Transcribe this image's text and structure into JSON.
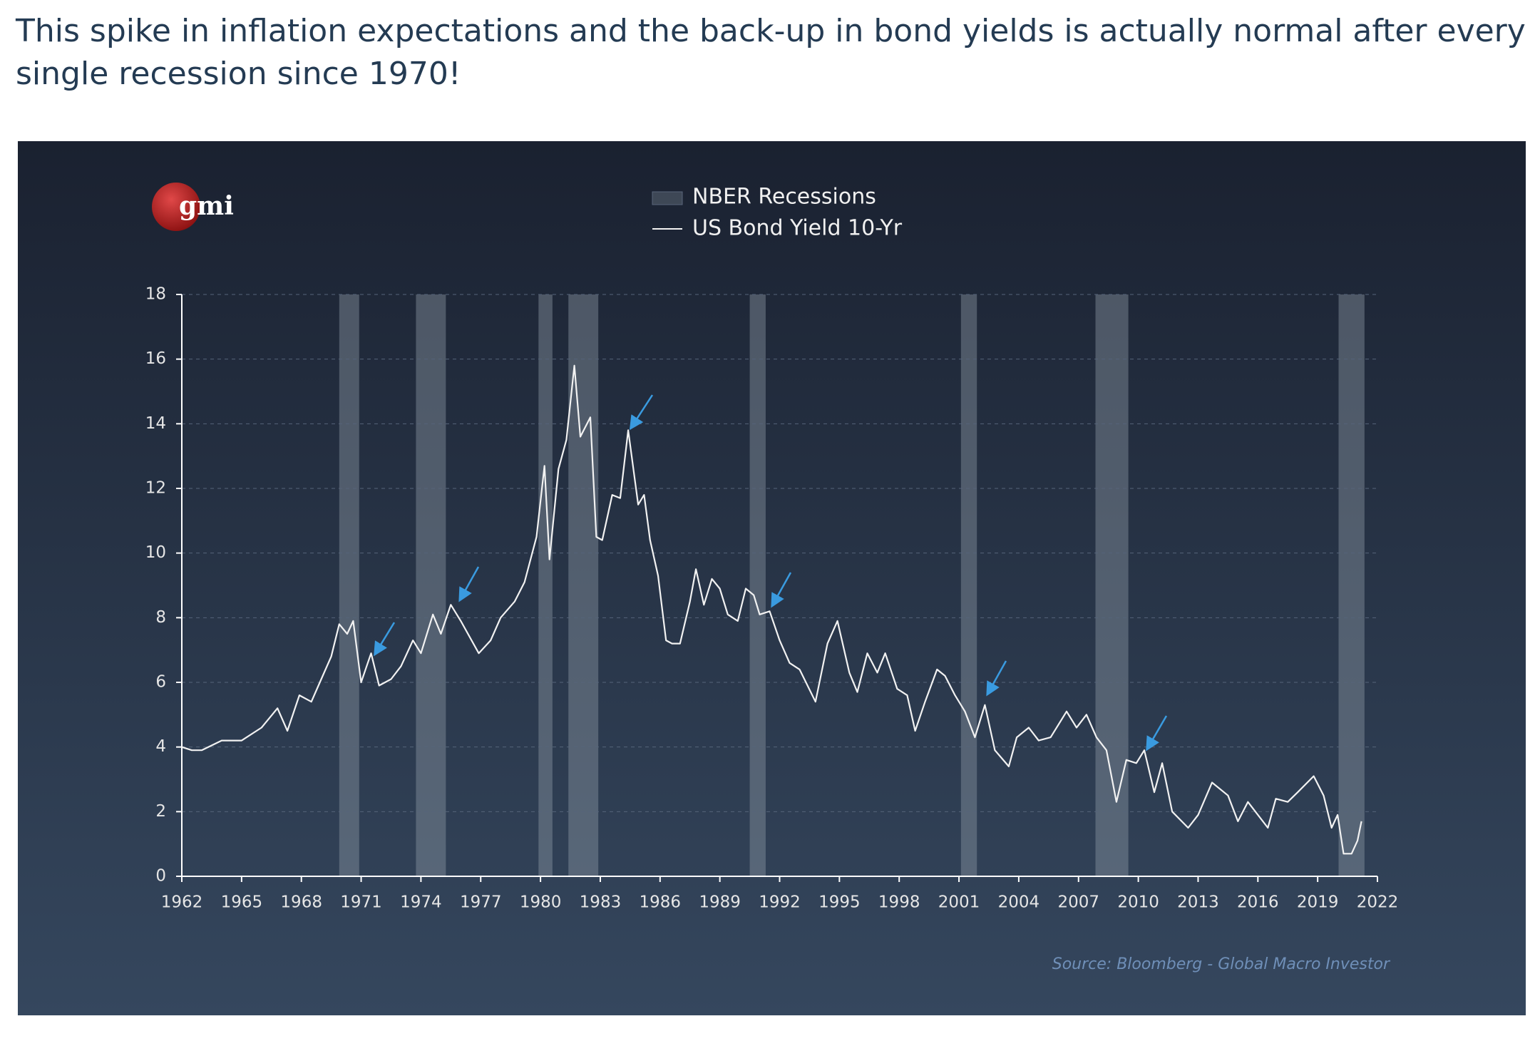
{
  "post_text": "This spike in inflation expectations and the back-up in bond yields is actually normal after every single recession since 1970!",
  "chart_data": {
    "type": "line",
    "logo": "gmi",
    "source": "Source: Bloomberg - Global Macro Investor",
    "xlim": [
      1962,
      2022
    ],
    "xticks": [
      1962,
      1965,
      1968,
      1971,
      1974,
      1977,
      1980,
      1983,
      1986,
      1989,
      1992,
      1995,
      1998,
      2001,
      2004,
      2007,
      2010,
      2013,
      2016,
      2019,
      2022
    ],
    "ylim": [
      0,
      18
    ],
    "yticks": [
      0,
      2,
      4,
      6,
      8,
      10,
      12,
      14,
      16,
      18
    ],
    "grid": true,
    "recessions": {
      "name": "NBER Recessions",
      "color": "#8e9aa8",
      "periods": [
        [
          1969.9,
          1970.9
        ],
        [
          1973.75,
          1975.25
        ],
        [
          1979.9,
          1980.6
        ],
        [
          1981.4,
          1982.9
        ],
        [
          1990.5,
          1991.3
        ],
        [
          2001.1,
          2001.9
        ],
        [
          2007.85,
          2009.5
        ],
        [
          2020.05,
          2021.35
        ]
      ]
    },
    "series": [
      {
        "name": "US Bond Yield 10-Yr",
        "color": "#f2f2f2",
        "x": [
          1962,
          1962.5,
          1963,
          1964,
          1965,
          1966,
          1966.8,
          1967.3,
          1967.9,
          1968.5,
          1969,
          1969.5,
          1969.9,
          1970.3,
          1970.6,
          1971,
          1971.5,
          1971.9,
          1972.5,
          1973,
          1973.6,
          1974,
          1974.6,
          1975,
          1975.5,
          1976,
          1976.9,
          1977.5,
          1978,
          1978.7,
          1979.2,
          1979.8,
          1980.2,
          1980.45,
          1980.9,
          1981.3,
          1981.7,
          1982,
          1982.5,
          1982.8,
          1983.1,
          1983.6,
          1984,
          1984.4,
          1984.9,
          1985.2,
          1985.5,
          1985.9,
          1986.3,
          1986.6,
          1987,
          1987.5,
          1987.8,
          1988.2,
          1988.6,
          1989,
          1989.4,
          1989.9,
          1990.3,
          1990.7,
          1991,
          1991.5,
          1992,
          1992.5,
          1993,
          1993.8,
          1994.4,
          1994.9,
          1995.5,
          1995.9,
          1996.4,
          1996.9,
          1997.3,
          1997.9,
          1998.4,
          1998.8,
          1999.3,
          1999.9,
          2000.3,
          2000.8,
          2001.3,
          2001.8,
          2002.3,
          2002.8,
          2003.5,
          2003.9,
          2004.5,
          2005,
          2005.6,
          2006.4,
          2006.9,
          2007.4,
          2007.9,
          2008.4,
          2008.9,
          2009.4,
          2009.9,
          2010.3,
          2010.8,
          2011.2,
          2011.7,
          2012.5,
          2013,
          2013.7,
          2014.5,
          2015,
          2015.5,
          2016.5,
          2016.9,
          2017.5,
          2018,
          2018.8,
          2019.3,
          2019.7,
          2020,
          2020.3,
          2020.7,
          2021,
          2021.2
        ],
        "values": [
          4.0,
          3.9,
          3.9,
          4.2,
          4.2,
          4.6,
          5.2,
          4.5,
          5.6,
          5.4,
          6.1,
          6.8,
          7.8,
          7.5,
          7.9,
          6.0,
          6.9,
          5.9,
          6.1,
          6.5,
          7.3,
          6.9,
          8.1,
          7.5,
          8.4,
          7.9,
          6.9,
          7.3,
          8.0,
          8.5,
          9.1,
          10.5,
          12.7,
          9.8,
          12.6,
          13.5,
          15.8,
          13.6,
          14.2,
          10.5,
          10.4,
          11.8,
          11.7,
          13.8,
          11.5,
          11.8,
          10.4,
          9.3,
          7.3,
          7.2,
          7.2,
          8.5,
          9.5,
          8.4,
          9.2,
          8.9,
          8.1,
          7.9,
          8.9,
          8.7,
          8.1,
          8.2,
          7.3,
          6.6,
          6.4,
          5.4,
          7.2,
          7.9,
          6.3,
          5.7,
          6.9,
          6.3,
          6.9,
          5.8,
          5.6,
          4.5,
          5.4,
          6.4,
          6.2,
          5.6,
          5.1,
          4.3,
          5.3,
          3.9,
          3.4,
          4.3,
          4.6,
          4.2,
          4.3,
          5.1,
          4.6,
          5.0,
          4.3,
          3.9,
          2.3,
          3.6,
          3.5,
          3.9,
          2.6,
          3.5,
          2.0,
          1.5,
          1.9,
          2.9,
          2.5,
          1.7,
          2.3,
          1.5,
          2.4,
          2.3,
          2.6,
          3.1,
          2.5,
          1.5,
          1.9,
          0.7,
          0.7,
          1.1,
          1.7
        ]
      }
    ]
  }
}
